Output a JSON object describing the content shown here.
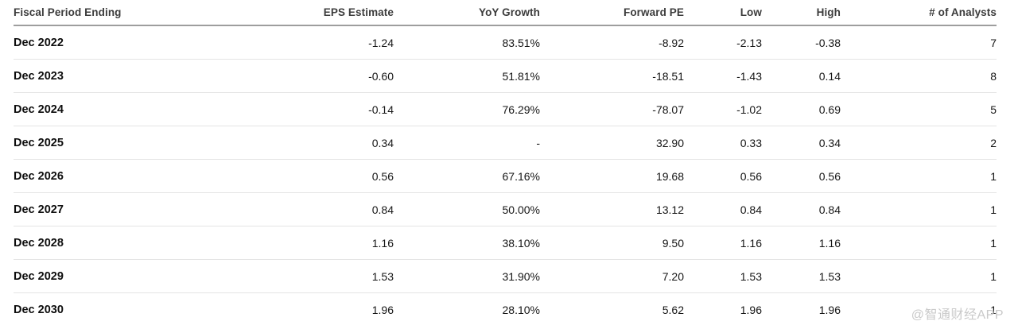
{
  "table": {
    "columns": [
      {
        "label": "Fiscal Period Ending",
        "align": "left"
      },
      {
        "label": "EPS Estimate",
        "align": "right"
      },
      {
        "label": "YoY Growth",
        "align": "right"
      },
      {
        "label": "Forward PE",
        "align": "right"
      },
      {
        "label": "Low",
        "align": "right"
      },
      {
        "label": "High",
        "align": "right"
      },
      {
        "label": "# of Analysts",
        "align": "right"
      }
    ],
    "rows": [
      {
        "period": "Dec 2022",
        "eps_estimate": "-1.24",
        "yoy_growth": "83.51%",
        "forward_pe": "-8.92",
        "low": "-2.13",
        "high": "-0.38",
        "analysts": "7"
      },
      {
        "period": "Dec 2023",
        "eps_estimate": "-0.60",
        "yoy_growth": "51.81%",
        "forward_pe": "-18.51",
        "low": "-1.43",
        "high": "0.14",
        "analysts": "8"
      },
      {
        "period": "Dec 2024",
        "eps_estimate": "-0.14",
        "yoy_growth": "76.29%",
        "forward_pe": "-78.07",
        "low": "-1.02",
        "high": "0.69",
        "analysts": "5"
      },
      {
        "period": "Dec 2025",
        "eps_estimate": "0.34",
        "yoy_growth": "-",
        "forward_pe": "32.90",
        "low": "0.33",
        "high": "0.34",
        "analysts": "2"
      },
      {
        "period": "Dec 2026",
        "eps_estimate": "0.56",
        "yoy_growth": "67.16%",
        "forward_pe": "19.68",
        "low": "0.56",
        "high": "0.56",
        "analysts": "1"
      },
      {
        "period": "Dec 2027",
        "eps_estimate": "0.84",
        "yoy_growth": "50.00%",
        "forward_pe": "13.12",
        "low": "0.84",
        "high": "0.84",
        "analysts": "1"
      },
      {
        "period": "Dec 2028",
        "eps_estimate": "1.16",
        "yoy_growth": "38.10%",
        "forward_pe": "9.50",
        "low": "1.16",
        "high": "1.16",
        "analysts": "1"
      },
      {
        "period": "Dec 2029",
        "eps_estimate": "1.53",
        "yoy_growth": "31.90%",
        "forward_pe": "7.20",
        "low": "1.53",
        "high": "1.53",
        "analysts": "1"
      },
      {
        "period": "Dec 2030",
        "eps_estimate": "1.96",
        "yoy_growth": "28.10%",
        "forward_pe": "5.62",
        "low": "1.96",
        "high": "1.96",
        "analysts": "1"
      }
    ]
  },
  "watermark": {
    "text": "@智通财经APP",
    "color": "#c9c9c9"
  },
  "colors": {
    "background": "#ffffff",
    "header_text": "#3c3c3c",
    "header_border": "#9e9e9e",
    "row_border": "#e4e4e4",
    "period_text": "#0d0d0d",
    "value_text": "#161616"
  }
}
